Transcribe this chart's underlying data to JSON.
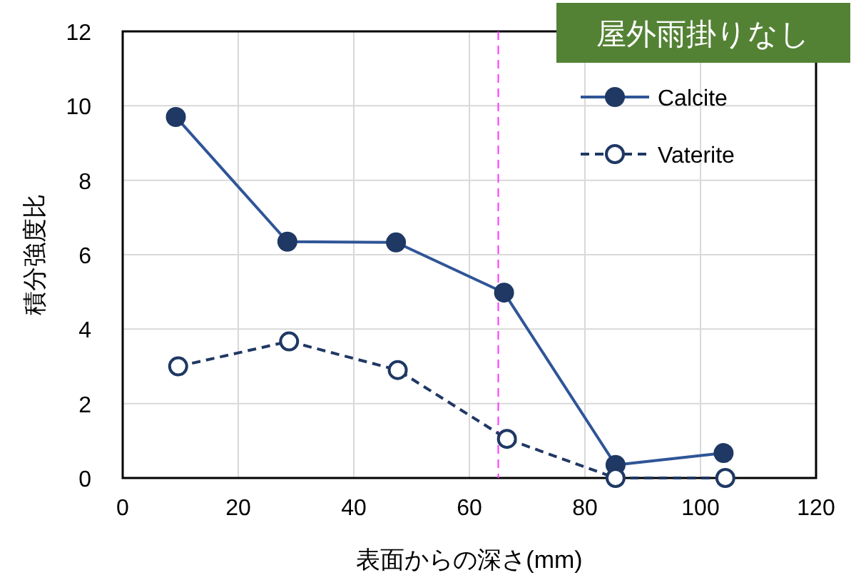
{
  "chart_data": {
    "type": "line",
    "title": "屋外雨掛りなし",
    "xlabel": "表面からの深さ(mm)",
    "ylabel": "積分強度比",
    "xlim": [
      0,
      120
    ],
    "xticks": [
      0,
      20,
      40,
      60,
      80,
      100,
      120
    ],
    "ylim": [
      0,
      12
    ],
    "yticks": [
      0,
      2,
      4,
      6,
      8,
      10,
      12
    ],
    "grid": true,
    "legend": "top right",
    "series": [
      {
        "name": "Calcite",
        "color": "#2f5597",
        "marker": "circle",
        "line_style": "solid",
        "x": [
          9.2,
          28.5,
          47.3,
          66,
          85.3,
          104
        ],
        "values": [
          9.7,
          6.35,
          6.33,
          4.98,
          0.35,
          0.67
        ]
      },
      {
        "name": "Vaterite",
        "color": "#203864",
        "marker": "circle",
        "line_style": "dashed",
        "x": [
          9.6,
          28.8,
          47.6,
          66.5,
          85.3,
          104.3
        ],
        "values": [
          3.0,
          3.67,
          2.9,
          1.05,
          0,
          0
        ]
      }
    ],
    "ref_lines": [
      {
        "axis": "x",
        "value": 65,
        "color": "#ff33ff",
        "line_style": "dashed"
      }
    ]
  }
}
